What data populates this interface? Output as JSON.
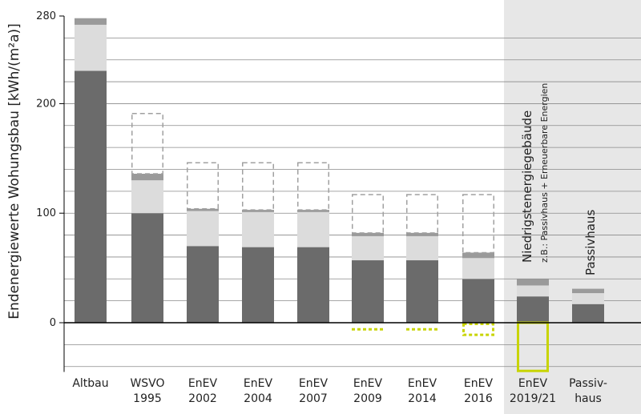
{
  "chart_data": {
    "type": "bar",
    "title": "",
    "ylabel": "Endenergiewerte Wohungsbau [kWh/(m²a)]",
    "ylim": [
      -45,
      280
    ],
    "yticks": [
      0,
      100,
      200,
      280
    ],
    "grid": true,
    "categories": [
      [
        "Altbau"
      ],
      [
        "WSVO",
        "1995"
      ],
      [
        "EnEV",
        "2002"
      ],
      [
        "EnEV",
        "2004"
      ],
      [
        "EnEV",
        "2007"
      ],
      [
        "EnEV",
        "2009"
      ],
      [
        "EnEV",
        "2014"
      ],
      [
        "EnEV",
        "2016"
      ],
      [
        "EnEV",
        "2019/21"
      ],
      [
        "Passiv-",
        "haus"
      ]
    ],
    "series": [
      {
        "values": [
          230,
          100,
          70,
          69,
          69,
          57,
          57,
          40,
          24,
          17
        ]
      },
      {
        "values": [
          42,
          30,
          32,
          32,
          32,
          22,
          22,
          19,
          10,
          10
        ]
      },
      {
        "values": [
          6,
          6,
          2,
          2,
          2,
          3,
          3,
          5,
          6,
          4
        ]
      }
    ],
    "dashed_top": [
      null,
      191,
      146,
      146,
      146,
      117,
      117,
      117,
      null,
      null
    ],
    "negative_values": [
      null,
      null,
      null,
      null,
      null,
      -6,
      -6,
      -10,
      -44,
      null
    ],
    "highlight_region": {
      "from_category": 8,
      "to_category": 9
    },
    "annotations": [
      {
        "text": "Niedrigstenergiegebäude",
        "size": "big",
        "category": 8
      },
      {
        "text": "z.B.: Passivhaus + Erneuerbare Energien",
        "size": "small",
        "category": 8
      },
      {
        "text": "Passivhaus",
        "size": "big",
        "category": 9
      }
    ],
    "colors": {
      "bar_bottom": "#6b6b6b",
      "bar_middle": "#dcdcdc",
      "bar_top": "#9a9a9a",
      "dashed_outline": "#a0a0a0",
      "negative": "#c8d400",
      "highlight": "#e7e7e7",
      "grid": "#8a8a8a",
      "axis": "#000000"
    }
  }
}
